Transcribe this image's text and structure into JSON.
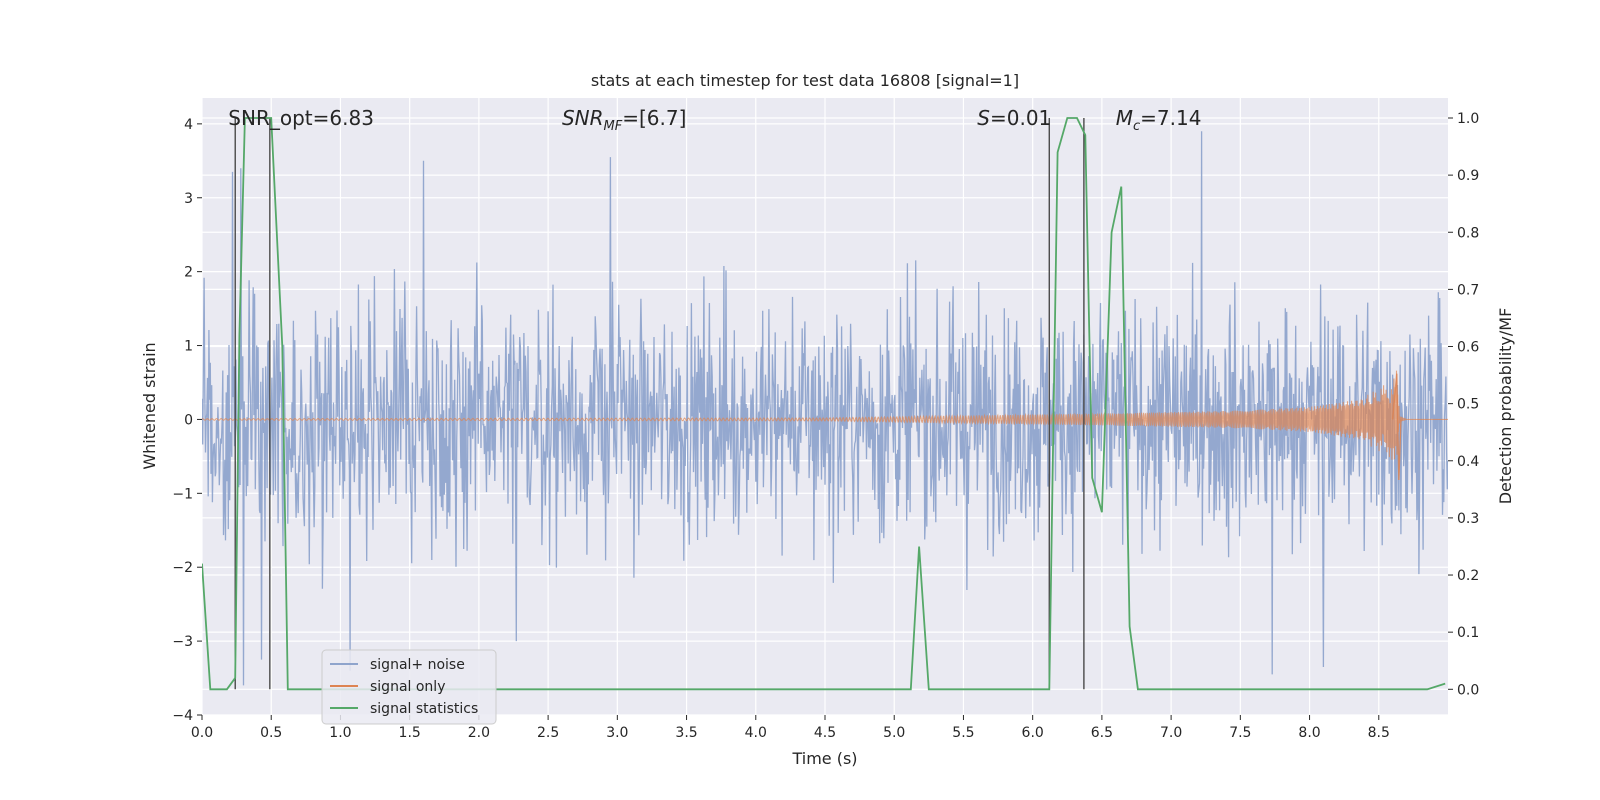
{
  "chart_data": {
    "type": "line",
    "title": "stats at each timestep for test data 16808 [signal=1]",
    "xlabel": "Time (s)",
    "ylabel_left": "Whitened strain",
    "ylabel_right": "Detection probability/MF",
    "xlim": [
      0.0,
      9.0
    ],
    "ylim_left": [
      -4.0,
      4.35
    ],
    "ylim_right": [
      -0.045,
      1.035
    ],
    "x_ticks": [
      "0.0",
      "0.5",
      "1.0",
      "1.5",
      "2.0",
      "2.5",
      "3.0",
      "3.5",
      "4.0",
      "4.5",
      "5.0",
      "5.5",
      "6.0",
      "6.5",
      "7.0",
      "7.5",
      "8.0",
      "8.5"
    ],
    "y_left_ticks": [
      "4",
      "3",
      "2",
      "1",
      "0",
      "−1",
      "−2",
      "−3",
      "−4"
    ],
    "y_right_ticks": [
      "1.0",
      "0.9",
      "0.8",
      "0.7",
      "0.6",
      "0.5",
      "0.4",
      "0.3",
      "0.2",
      "0.1",
      "0.0"
    ],
    "grid": true,
    "background": "#eaeaf2",
    "legend_location": "lower-left",
    "annotations": [
      {
        "key": "snr_opt",
        "text": "SNR_opt=6.83",
        "x": 0.19,
        "y": 4.0
      },
      {
        "key": "snr_mf",
        "text": "SNR",
        "sub": "MF",
        "after": "=[6.7]",
        "x": 2.6,
        "y": 4.0
      },
      {
        "key": "s",
        "text": "S",
        "after": "=0.01",
        "x": 5.6,
        "y": 4.0
      },
      {
        "key": "mc",
        "text": "M",
        "sub": "c",
        "after": "=7.14",
        "x": 6.6,
        "y": 4.0
      }
    ],
    "vertical_lines": [
      0.24,
      0.49,
      6.12,
      6.37
    ],
    "series": [
      {
        "name": "signal+ noise",
        "color": "#8fa4cc",
        "axis": "left",
        "envelope": {
          "x": [
            0.0,
            1.0,
            2.0,
            3.0,
            4.0,
            5.0,
            6.0,
            7.0,
            8.0,
            9.0
          ],
          "typical_amplitude": [
            1.3,
            1.3,
            1.3,
            1.3,
            1.3,
            1.3,
            1.3,
            1.3,
            1.3,
            1.3
          ]
        },
        "peaks": [
          {
            "x": 0.22,
            "y": 3.35
          },
          {
            "x": 0.28,
            "y": 3.4
          },
          {
            "x": 1.6,
            "y": 3.5
          },
          {
            "x": 2.95,
            "y": 3.55
          },
          {
            "x": 7.22,
            "y": 3.9
          },
          {
            "x": 0.3,
            "y": -3.6
          },
          {
            "x": 1.07,
            "y": -3.4
          },
          {
            "x": 7.73,
            "y": -3.45
          },
          {
            "x": 8.1,
            "y": -3.35
          },
          {
            "x": 0.43,
            "y": -3.25
          },
          {
            "x": 2.27,
            "y": -3.0
          }
        ]
      },
      {
        "name": "signal only",
        "color": "#dd8452",
        "axis": "left",
        "envelope": {
          "x": [
            0.0,
            4.5,
            5.5,
            6.5,
            7.5,
            8.0,
            8.4,
            8.58,
            8.63,
            8.65,
            8.7,
            9.0
          ],
          "amplitude": [
            0.01,
            0.02,
            0.05,
            0.08,
            0.12,
            0.17,
            0.28,
            0.45,
            0.6,
            0.05,
            0.0,
            0.0
          ]
        }
      },
      {
        "name": "signal statistics",
        "color": "#55a868",
        "axis": "right",
        "x": [
          0.0,
          0.06,
          0.18,
          0.24,
          0.27,
          0.31,
          0.5,
          0.58,
          0.62,
          0.75,
          5.05,
          5.12,
          5.18,
          5.25,
          5.4,
          6.08,
          6.12,
          6.18,
          6.25,
          6.32,
          6.38,
          6.43,
          6.5,
          6.57,
          6.64,
          6.7,
          6.76,
          8.85,
          8.98
        ],
        "y": [
          0.22,
          0.0,
          0.0,
          0.02,
          0.62,
          1.0,
          1.0,
          0.6,
          0.0,
          0.0,
          0.0,
          0.0,
          0.25,
          0.0,
          0.0,
          0.0,
          0.0,
          0.94,
          1.0,
          1.0,
          0.97,
          0.37,
          0.31,
          0.8,
          0.88,
          0.11,
          0.0,
          0.0,
          0.01
        ]
      }
    ]
  }
}
